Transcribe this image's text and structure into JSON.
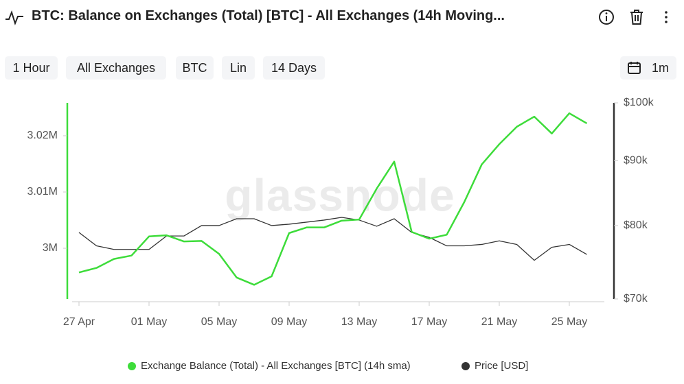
{
  "header": {
    "title": "BTC: Balance on Exchanges (Total) [BTC] - All Exchanges (14h Moving..."
  },
  "toolbar": {
    "buttons": [
      "1 Hour",
      "All Exchanges",
      "BTC",
      "Lin",
      "14 Days"
    ],
    "range": "1m"
  },
  "chart_data": {
    "type": "line",
    "watermark": "glassnode",
    "x": [
      "27 Apr",
      "28 Apr",
      "29 Apr",
      "30 Apr",
      "01 May",
      "02 May",
      "03 May",
      "04 May",
      "05 May",
      "06 May",
      "07 May",
      "08 May",
      "09 May",
      "10 May",
      "11 May",
      "12 May",
      "13 May",
      "14 May",
      "15 May",
      "16 May",
      "17 May",
      "18 May",
      "19 May",
      "20 May",
      "21 May",
      "22 May",
      "23 May",
      "24 May",
      "25 May",
      "26 May"
    ],
    "xticks": [
      "27 Apr",
      "01 May",
      "05 May",
      "09 May",
      "13 May",
      "17 May",
      "21 May",
      "25 May"
    ],
    "series": [
      {
        "name": "Exchange Balance (Total) - All Exchanges [BTC] (14h sma)",
        "color": "#3ddc3a",
        "values": [
          2995700,
          2996500,
          2998100,
          2998700,
          3002100,
          3002300,
          3001200,
          3001300,
          2999000,
          2994800,
          2993500,
          2995000,
          3002700,
          3003700,
          3003700,
          3004900,
          3005100,
          3010600,
          3015400,
          3002900,
          3001700,
          3002400,
          3008200,
          3014900,
          3018500,
          3021600,
          3023400,
          3020400,
          3024000,
          3022200
        ]
      },
      {
        "name": "Price [USD]",
        "color": "#333333",
        "axis": "y2",
        "values": [
          79000,
          77100,
          76600,
          76600,
          76600,
          78500,
          78500,
          80000,
          80000,
          81000,
          81000,
          80000,
          80200,
          80500,
          80800,
          81200,
          80800,
          79900,
          81000,
          79000,
          78300,
          77100,
          77100,
          77300,
          77800,
          77300,
          75100,
          76900,
          77300,
          75900
        ]
      }
    ],
    "ylim": [
      2990980,
      3025850
    ],
    "yticks": [
      {
        "value": 3000000,
        "label": "3M"
      },
      {
        "value": 3010000,
        "label": "3.01M"
      },
      {
        "value": 3020000,
        "label": "3.02M"
      }
    ],
    "y2lim": [
      70000,
      100000
    ],
    "y2scale": "log",
    "y2ticks": [
      {
        "value": 70000,
        "label": "$70k"
      },
      {
        "value": 80000,
        "label": "$80k"
      },
      {
        "value": 90000,
        "label": "$90k"
      },
      {
        "value": 100000,
        "label": "$100k"
      }
    ],
    "legend": "bottom"
  }
}
